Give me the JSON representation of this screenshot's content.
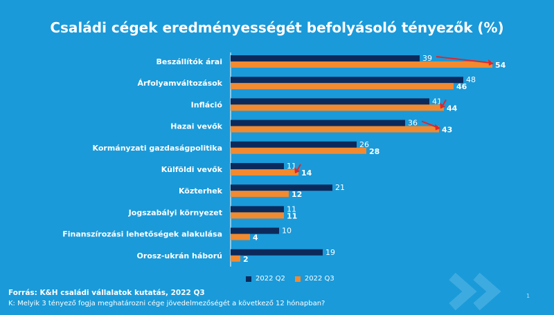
{
  "colors": {
    "background": "#1a9ad9",
    "series_q2": "#0b2a5b",
    "series_q3": "#f28a30",
    "arrow": "#e0262b",
    "label_text": "#ffffff"
  },
  "footer": {
    "source": "Forrás: K&H családi vállalatok kutatás, 2022 Q3",
    "question": "K: Melyik 3 tényező fogja meghatározni cége jövedelmezőségét a következő 12 hónapban?",
    "page_number": "1"
  },
  "chart_data": {
    "type": "bar",
    "orientation": "horizontal",
    "title": "Családi cégek eredményességét befolyásoló tényezők (%)",
    "categories": [
      "Beszállítók árai",
      "Árfolyamváltozások",
      "Infláció",
      "Hazai vevők",
      "Kormányzati gazdaságpolitika",
      "Külföldi vevők",
      "Közterhek",
      "Jogszabályi környezet",
      "Finanszírozási lehetőségek alakulása",
      "Orosz-ukrán háború"
    ],
    "series": [
      {
        "name": "2022 Q2",
        "values": [
          39,
          48,
          41,
          36,
          26,
          11,
          21,
          11,
          10,
          19
        ]
      },
      {
        "name": "2022 Q3",
        "values": [
          54,
          46,
          44,
          43,
          28,
          14,
          12,
          11,
          4,
          2
        ]
      }
    ],
    "increase_arrows": [
      "Beszállítók árai",
      "Infláció",
      "Hazai vevők",
      "Külföldi vevők"
    ],
    "legend_position": "bottom-center",
    "grid": false
  }
}
